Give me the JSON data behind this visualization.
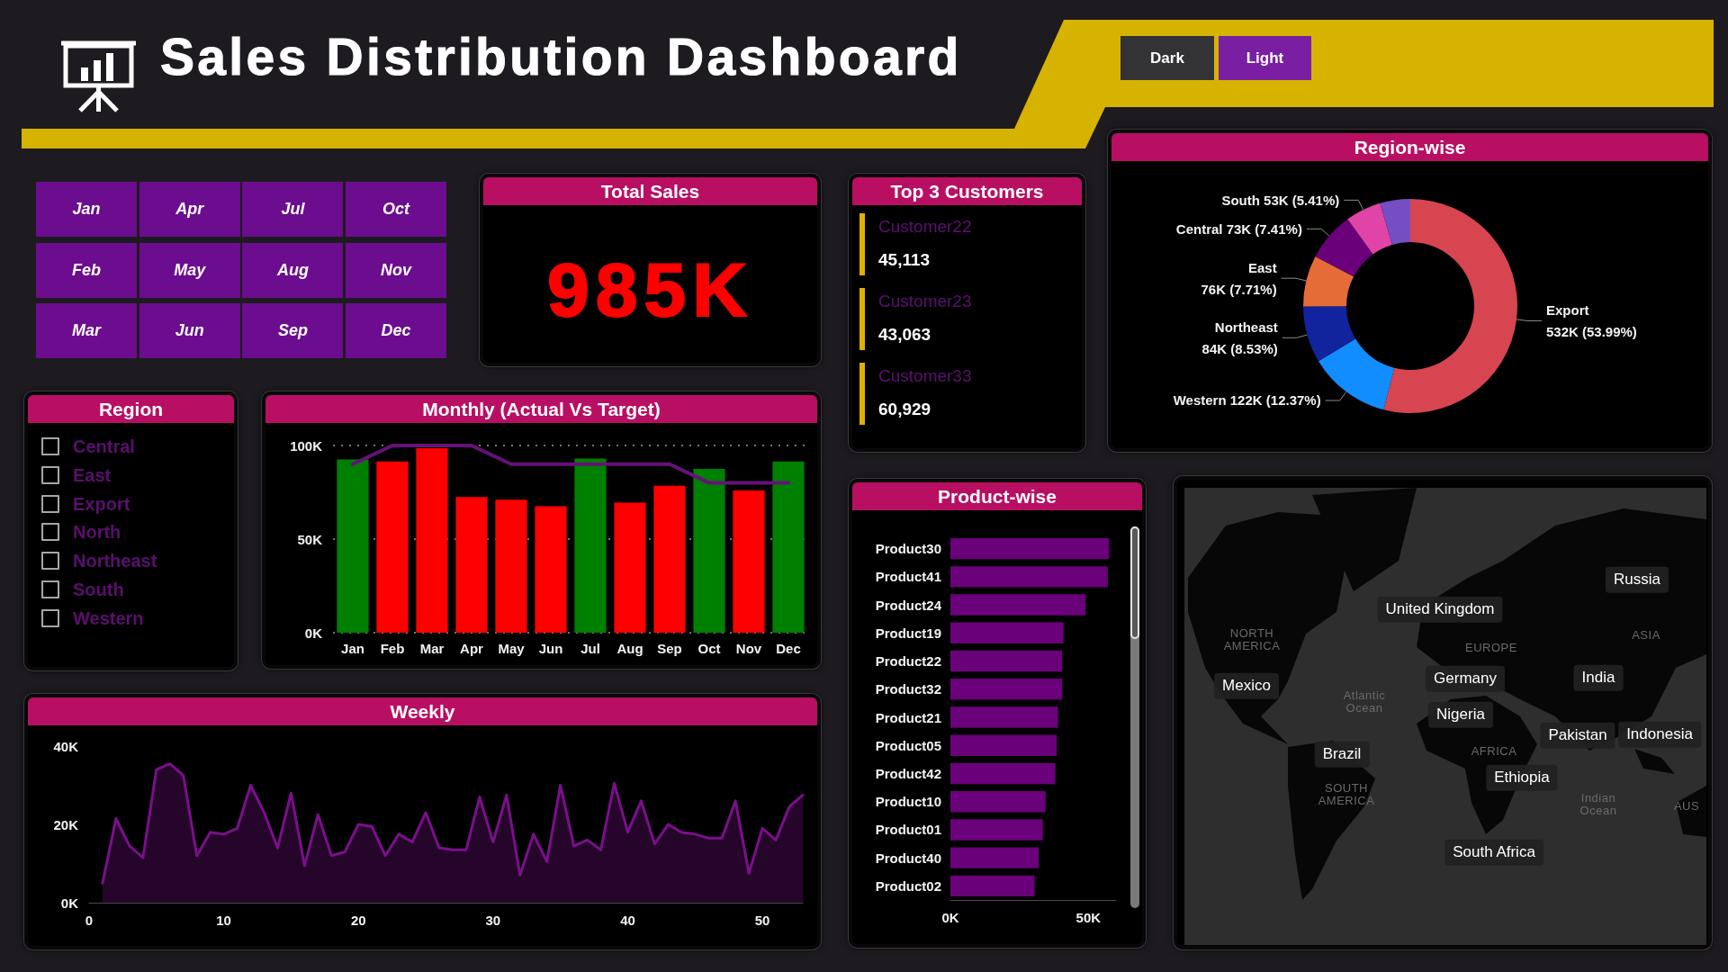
{
  "chart_data": [
    {
      "type": "other",
      "title": "Sales Distribution Dashboard",
      "annotations": [
        "Dark",
        "Light"
      ]
    },
    {
      "type": "other",
      "annotations": [
        "Jan",
        "Apr",
        "Jul",
        "Oct",
        "Feb",
        "May",
        "Aug",
        "Nov",
        "Mar",
        "Jun",
        "Sep",
        "Dec"
      ]
    },
    {
      "type": "other",
      "title": "Total Sales",
      "annotations": [
        "985K"
      ]
    },
    {
      "type": "other",
      "title": "Top 3 Customers",
      "annotations": [
        "Customer22",
        "45,113",
        "Customer23",
        "43,063",
        "Customer33",
        "60,929"
      ]
    },
    {
      "type": "donut",
      "title": "Region-wise",
      "categories": [
        "Export",
        "Western",
        "Northeast",
        "East",
        "Central",
        "South",
        null
      ],
      "values": [
        532000,
        122000,
        84000,
        76000,
        73000,
        53000,
        45000
      ],
      "value_labels": [
        "532K (53.99%)",
        "122K (12.37%)",
        "84K (8.53%)",
        "76K (7.71%)",
        "73K (7.41%)",
        "53K (5.41%)",
        null
      ],
      "colors": [
        "#d64550",
        "#118dff",
        "#12239e",
        "#e66c37",
        "#6b007b",
        "#e044a7",
        "#744ec2"
      ]
    },
    {
      "type": "other",
      "title": "Region",
      "annotations": [
        "Central",
        "East",
        "Export",
        "North",
        "Northeast",
        "South",
        "Western"
      ]
    },
    {
      "type": "bar",
      "title": "Monthly (Actual Vs Target)",
      "categories": [
        "Jan",
        "Feb",
        "Mar",
        "Apr",
        "May",
        "Jun",
        "Jul",
        "Aug",
        "Sep",
        "Oct",
        "Nov",
        "Dec"
      ],
      "series": [
        {
          "type": "bar",
          "colors": [
            "#008000",
            "#ff0000",
            "#ff0000",
            "#ff0000",
            "#ff0000",
            "#ff0000",
            "#008000",
            "#ff0000",
            "#ff0000",
            "#008000",
            "#ff0000",
            "#008000"
          ],
          "values": [
            92500,
            91500,
            98500,
            72500,
            71000,
            67500,
            93000,
            69500,
            78500,
            87500,
            76000,
            91500
          ]
        },
        {
          "type": "line",
          "color": "#66117a",
          "values": [
            90000,
            100000,
            100000,
            100000,
            90000,
            90000,
            90000,
            90000,
            90000,
            80000,
            80000,
            80000
          ]
        }
      ],
      "ylim": [
        0,
        100000
      ],
      "yticks": [
        {
          "value": 0,
          "label": "0K"
        },
        {
          "value": 50000,
          "label": "50K"
        },
        {
          "value": 100000,
          "label": "100K"
        }
      ],
      "grid": "y"
    },
    {
      "type": "bar",
      "orientation": "horizontal",
      "title": "Product-wise",
      "categories": [
        "Product30",
        "Product41",
        "Product24",
        "Product19",
        "Product22",
        "Product32",
        "Product21",
        "Product05",
        "Product42",
        "Product10",
        "Product01",
        "Product40",
        "Product02"
      ],
      "values": [
        57500,
        57000,
        49000,
        41000,
        40500,
        40500,
        39000,
        38500,
        38000,
        34500,
        33500,
        32000,
        30500
      ],
      "color": "#6b007b",
      "xlim": [
        0,
        60000
      ],
      "xticks": [
        {
          "value": 0,
          "label": "0K"
        },
        {
          "value": 50000,
          "label": "50K"
        }
      ]
    },
    {
      "type": "other",
      "annotations": [
        "Russia",
        "United Kingdom",
        "Mexico",
        "Germany",
        "India",
        "Nigeria",
        "Pakistan",
        "Indonesia",
        "Brazil",
        "Ethiopia",
        "South Africa",
        "NORTH AMERICA",
        "EUROPE",
        "ASIA",
        "Atlantic Ocean",
        "AFRICA",
        "SOUTH AMERICA",
        "Indian Ocean",
        "AUS"
      ]
    },
    {
      "type": "area",
      "title": "Weekly",
      "x": [
        1,
        2,
        3,
        4,
        5,
        6,
        7,
        8,
        9,
        10,
        11,
        12,
        13,
        14,
        15,
        16,
        17,
        18,
        19,
        20,
        21,
        22,
        23,
        24,
        25,
        26,
        27,
        28,
        29,
        30,
        31,
        32,
        33,
        34,
        35,
        36,
        37,
        38,
        39,
        40,
        41,
        42,
        43,
        44,
        45,
        46,
        47,
        48,
        49,
        50,
        51,
        52,
        53
      ],
      "values": [
        5000,
        21500,
        14500,
        11500,
        34000,
        35500,
        32500,
        12000,
        18000,
        17500,
        19000,
        30000,
        23000,
        14000,
        28000,
        9500,
        22500,
        12000,
        13000,
        20000,
        19500,
        12000,
        17500,
        15500,
        23000,
        14000,
        13500,
        13500,
        27000,
        15500,
        27500,
        7000,
        17500,
        10500,
        30000,
        14500,
        16000,
        13500,
        30500,
        18000,
        26000,
        15000,
        20000,
        18000,
        17500,
        16500,
        16500,
        26000,
        7500,
        19000,
        16000,
        24500,
        27500
      ],
      "color": "#7b0f8c",
      "xlim": [
        0,
        53
      ],
      "xticks": [
        0,
        10,
        20,
        30,
        40,
        50
      ],
      "ylim": [
        0,
        40000
      ],
      "yticks": [
        {
          "value": 0,
          "label": "0K"
        },
        {
          "value": 20000,
          "label": "20K"
        },
        {
          "value": 40000,
          "label": "40K"
        }
      ]
    }
  ]
}
